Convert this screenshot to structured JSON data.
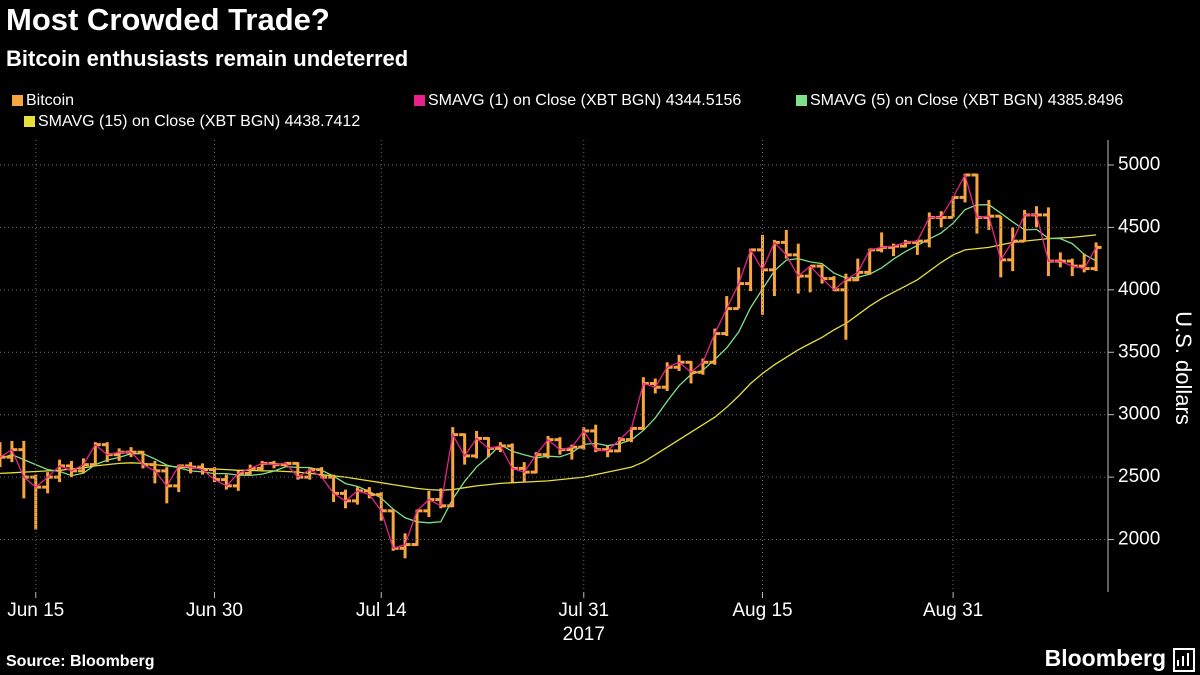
{
  "chart_data": {
    "type": "ohlc",
    "title": "Most Crowded Trade?",
    "subtitle": "Bitcoin enthusiasts remain undeterred",
    "ylabel": "U.S. dollars",
    "x_year_label": "2017",
    "source": "Source: Bloomberg",
    "brand": "Bloomberg",
    "grid": true,
    "y_axis_side": "right",
    "xlim": [
      "2017-06-12",
      "2017-09-13"
    ],
    "xticks": [
      {
        "value": "2017-06-15",
        "label": "Jun 15"
      },
      {
        "value": "2017-06-30",
        "label": "Jun 30"
      },
      {
        "value": "2017-07-14",
        "label": "Jul 14"
      },
      {
        "value": "2017-07-31",
        "label": "Jul 31"
      },
      {
        "value": "2017-08-15",
        "label": "Aug 15"
      },
      {
        "value": "2017-08-31",
        "label": "Aug 31"
      }
    ],
    "ylim": [
      1580,
      5200
    ],
    "yticks": [
      2000,
      2500,
      3000,
      3500,
      4000,
      4500,
      5000
    ],
    "x": [
      "2017-06-12",
      "2017-06-13",
      "2017-06-14",
      "2017-06-15",
      "2017-06-16",
      "2017-06-17",
      "2017-06-18",
      "2017-06-19",
      "2017-06-20",
      "2017-06-21",
      "2017-06-22",
      "2017-06-23",
      "2017-06-24",
      "2017-06-25",
      "2017-06-26",
      "2017-06-27",
      "2017-06-28",
      "2017-06-29",
      "2017-06-30",
      "2017-07-01",
      "2017-07-02",
      "2017-07-03",
      "2017-07-04",
      "2017-07-05",
      "2017-07-06",
      "2017-07-07",
      "2017-07-08",
      "2017-07-09",
      "2017-07-10",
      "2017-07-11",
      "2017-07-12",
      "2017-07-13",
      "2017-07-14",
      "2017-07-15",
      "2017-07-16",
      "2017-07-17",
      "2017-07-18",
      "2017-07-19",
      "2017-07-20",
      "2017-07-21",
      "2017-07-22",
      "2017-07-23",
      "2017-07-24",
      "2017-07-25",
      "2017-07-26",
      "2017-07-27",
      "2017-07-28",
      "2017-07-29",
      "2017-07-30",
      "2017-07-31",
      "2017-08-01",
      "2017-08-02",
      "2017-08-03",
      "2017-08-04",
      "2017-08-05",
      "2017-08-06",
      "2017-08-07",
      "2017-08-08",
      "2017-08-09",
      "2017-08-10",
      "2017-08-11",
      "2017-08-12",
      "2017-08-13",
      "2017-08-14",
      "2017-08-15",
      "2017-08-16",
      "2017-08-17",
      "2017-08-18",
      "2017-08-19",
      "2017-08-20",
      "2017-08-21",
      "2017-08-22",
      "2017-08-23",
      "2017-08-24",
      "2017-08-25",
      "2017-08-26",
      "2017-08-27",
      "2017-08-28",
      "2017-08-29",
      "2017-08-30",
      "2017-08-31",
      "2017-09-01",
      "2017-09-02",
      "2017-09-03",
      "2017-09-04",
      "2017-09-05",
      "2017-09-06",
      "2017-09-07",
      "2017-09-08",
      "2017-09-09",
      "2017-09-10",
      "2017-09-11",
      "2017-09-12"
    ],
    "ohlc": {
      "name": "Bitcoin",
      "color": "#f7a541",
      "open": [
        2700,
        2660,
        2720,
        2500,
        2420,
        2500,
        2590,
        2550,
        2600,
        2760,
        2680,
        2700,
        2700,
        2600,
        2550,
        2430,
        2590,
        2580,
        2560,
        2480,
        2430,
        2530,
        2570,
        2610,
        2600,
        2610,
        2500,
        2560,
        2500,
        2370,
        2310,
        2390,
        2360,
        2230,
        1930,
        1960,
        2230,
        2320,
        2270,
        2840,
        2670,
        2810,
        2730,
        2750,
        2570,
        2540,
        2680,
        2800,
        2720,
        2740,
        2870,
        2720,
        2710,
        2800,
        2890,
        3250,
        3220,
        3380,
        3420,
        3340,
        3420,
        3650,
        3850,
        4050,
        4320,
        4160,
        4380,
        4280,
        4110,
        4190,
        4090,
        4000,
        4080,
        4140,
        4320,
        4340,
        4350,
        4380,
        4390,
        4580,
        4580,
        4740,
        4920,
        4580,
        4590,
        4240,
        4390,
        4600,
        4600,
        4230,
        4230,
        4190,
        4170
      ],
      "high": [
        2780,
        2790,
        2790,
        2520,
        2540,
        2640,
        2630,
        2650,
        2780,
        2780,
        2730,
        2740,
        2710,
        2630,
        2580,
        2600,
        2620,
        2610,
        2580,
        2520,
        2550,
        2600,
        2630,
        2630,
        2620,
        2620,
        2570,
        2580,
        2520,
        2400,
        2420,
        2420,
        2380,
        2240,
        2050,
        2240,
        2390,
        2410,
        2900,
        2850,
        2870,
        2820,
        2780,
        2770,
        2620,
        2700,
        2830,
        2820,
        2760,
        2900,
        2920,
        2750,
        2820,
        2900,
        3300,
        3290,
        3420,
        3480,
        3430,
        3450,
        3690,
        3950,
        4180,
        4330,
        4440,
        4400,
        4480,
        4370,
        4190,
        4200,
        4110,
        4130,
        4250,
        4330,
        4460,
        4370,
        4400,
        4400,
        4620,
        4630,
        4750,
        4930,
        4930,
        4720,
        4590,
        4500,
        4640,
        4670,
        4660,
        4300,
        4250,
        4290,
        4380
      ],
      "low": [
        2580,
        2620,
        2330,
        2080,
        2370,
        2460,
        2500,
        2530,
        2590,
        2620,
        2630,
        2660,
        2570,
        2450,
        2290,
        2380,
        2530,
        2520,
        2460,
        2400,
        2390,
        2520,
        2550,
        2570,
        2580,
        2480,
        2480,
        2490,
        2300,
        2250,
        2280,
        2330,
        2150,
        1910,
        1850,
        1950,
        2180,
        2250,
        2260,
        2600,
        2650,
        2660,
        2700,
        2460,
        2460,
        2530,
        2650,
        2680,
        2640,
        2720,
        2700,
        2660,
        2700,
        2780,
        2880,
        3170,
        3190,
        3350,
        3250,
        3320,
        3400,
        3630,
        3850,
        3990,
        3800,
        3950,
        4250,
        3970,
        3980,
        4050,
        3990,
        3600,
        4070,
        4120,
        4300,
        4270,
        4340,
        4280,
        4340,
        4500,
        4580,
        4700,
        4450,
        4480,
        4100,
        4150,
        4390,
        4500,
        4110,
        4180,
        4110,
        4140,
        4150
      ],
      "close": [
        2660,
        2720,
        2500,
        2420,
        2500,
        2590,
        2550,
        2600,
        2760,
        2680,
        2700,
        2700,
        2600,
        2550,
        2430,
        2590,
        2580,
        2560,
        2480,
        2430,
        2530,
        2570,
        2610,
        2600,
        2610,
        2500,
        2560,
        2500,
        2370,
        2310,
        2390,
        2360,
        2230,
        1930,
        1960,
        2230,
        2320,
        2270,
        2840,
        2670,
        2810,
        2730,
        2750,
        2570,
        2540,
        2680,
        2800,
        2720,
        2740,
        2870,
        2720,
        2710,
        2800,
        2890,
        3250,
        3220,
        3380,
        3420,
        3340,
        3420,
        3650,
        3850,
        4050,
        4320,
        4160,
        4380,
        4280,
        4110,
        4190,
        4090,
        4000,
        4080,
        4140,
        4320,
        4340,
        4350,
        4380,
        4390,
        4580,
        4580,
        4740,
        4920,
        4580,
        4590,
        4240,
        4390,
        4600,
        4600,
        4230,
        4230,
        4190,
        4170,
        4340
      ]
    },
    "series": [
      {
        "name": "SMAVG (1) on Close (XBT BGN) 4344.5156",
        "color": "#e8218c",
        "values": [
          2660,
          2720,
          2500,
          2420,
          2500,
          2590,
          2550,
          2600,
          2760,
          2680,
          2700,
          2700,
          2600,
          2550,
          2430,
          2590,
          2580,
          2560,
          2480,
          2430,
          2530,
          2570,
          2610,
          2600,
          2610,
          2500,
          2560,
          2500,
          2370,
          2310,
          2390,
          2360,
          2230,
          1930,
          1960,
          2230,
          2320,
          2270,
          2840,
          2670,
          2810,
          2730,
          2750,
          2570,
          2540,
          2680,
          2800,
          2720,
          2740,
          2870,
          2720,
          2710,
          2800,
          2890,
          3250,
          3220,
          3380,
          3420,
          3340,
          3420,
          3650,
          3850,
          4050,
          4320,
          4160,
          4380,
          4280,
          4110,
          4190,
          4090,
          4000,
          4080,
          4140,
          4320,
          4340,
          4350,
          4380,
          4390,
          4580,
          4580,
          4740,
          4920,
          4580,
          4590,
          4240,
          4390,
          4600,
          4600,
          4230,
          4230,
          4190,
          4170,
          4340
        ]
      },
      {
        "name": "SMAVG (5) on Close (XBT BGN) 4385.8496",
        "color": "#7ee08a",
        "values": [
          2650,
          2680,
          2640,
          2600,
          2560,
          2546,
          2512,
          2532,
          2600,
          2636,
          2658,
          2688,
          2688,
          2646,
          2596,
          2574,
          2550,
          2542,
          2528,
          2528,
          2516,
          2514,
          2524,
          2548,
          2584,
          2578,
          2576,
          2554,
          2508,
          2448,
          2426,
          2386,
          2332,
          2244,
          2174,
          2142,
          2134,
          2142,
          2324,
          2466,
          2582,
          2664,
          2760,
          2706,
          2680,
          2654,
          2668,
          2662,
          2696,
          2762,
          2770,
          2752,
          2768,
          2798,
          2874,
          2974,
          3108,
          3232,
          3322,
          3356,
          3442,
          3536,
          3662,
          3858,
          4006,
          4152,
          4238,
          4250,
          4224,
          4210,
          4134,
          4094,
          4100,
          4126,
          4176,
          4246,
          4306,
          4356,
          4408,
          4456,
          4534,
          4642,
          4680,
          4682,
          4614,
          4544,
          4480,
          4484,
          4412,
          4410,
          4370,
          4284,
          4232
        ]
      },
      {
        "name": "SMAVG (15) on Close (XBT BGN) 4438.7412",
        "color": "#e6df3c",
        "values": [
          2530,
          2535,
          2540,
          2545,
          2550,
          2555,
          2565,
          2575,
          2590,
          2600,
          2610,
          2615,
          2610,
          2600,
          2590,
          2580,
          2575,
          2570,
          2565,
          2560,
          2555,
          2555,
          2550,
          2550,
          2545,
          2540,
          2530,
          2520,
          2510,
          2500,
          2485,
          2470,
          2455,
          2440,
          2425,
          2410,
          2400,
          2395,
          2400,
          2415,
          2430,
          2440,
          2450,
          2455,
          2460,
          2465,
          2470,
          2480,
          2490,
          2500,
          2520,
          2540,
          2560,
          2580,
          2620,
          2680,
          2740,
          2800,
          2860,
          2920,
          2980,
          3060,
          3150,
          3250,
          3330,
          3400,
          3460,
          3520,
          3570,
          3620,
          3680,
          3730,
          3800,
          3870,
          3930,
          3980,
          4030,
          4080,
          4150,
          4220,
          4280,
          4320,
          4330,
          4340,
          4360,
          4380,
          4390,
          4400,
          4410,
          4415,
          4420,
          4430,
          4440
        ]
      }
    ]
  }
}
